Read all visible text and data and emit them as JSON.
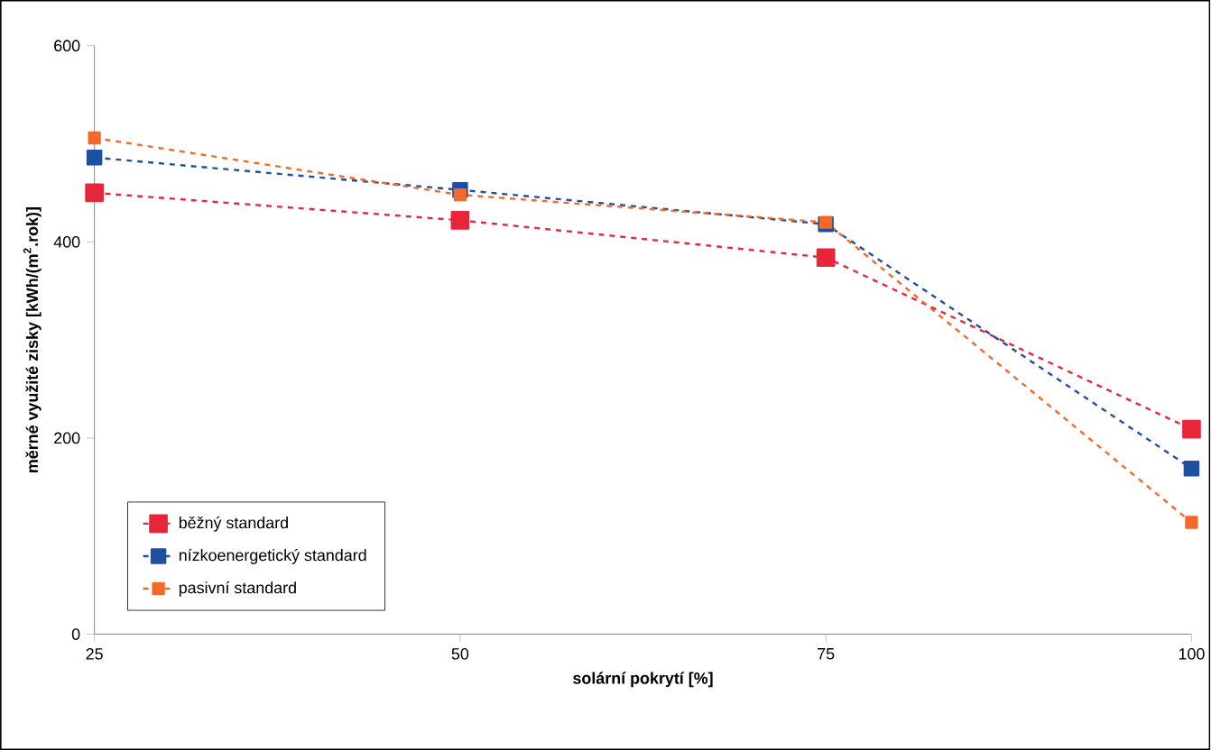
{
  "chart_data": {
    "type": "line",
    "xlabel": "solární pokrytí [%]",
    "ylabel": "měrné využité zisky [kWh/(m$^{2}$.rok)]",
    "x": [
      25,
      50,
      75,
      100
    ],
    "xlim": [
      25,
      100
    ],
    "xticks": [
      25,
      50,
      75,
      100
    ],
    "ylim": [
      0,
      600
    ],
    "yticks": [
      0,
      200,
      400,
      600
    ],
    "grid": false,
    "legend": "bottom left",
    "marker": "square",
    "line_style": "dashed",
    "series": [
      {
        "name": "běžný standard",
        "color": "#e8263a",
        "values": [
          450,
          422,
          384,
          209
        ]
      },
      {
        "name": "nízkoenergetický standard",
        "color": "#1f4fa0",
        "values": [
          486,
          453,
          418,
          169
        ]
      },
      {
        "name": "pasivní standard",
        "color": "#f26a2a",
        "values": [
          506,
          448,
          420,
          114
        ]
      }
    ]
  }
}
